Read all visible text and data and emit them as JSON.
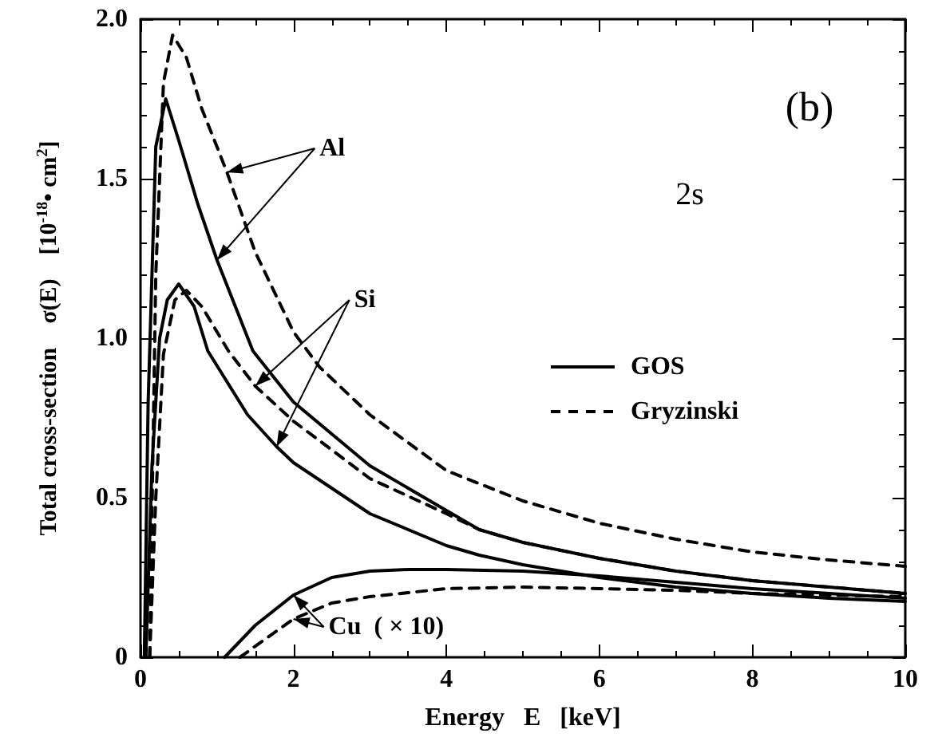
{
  "chart_data": {
    "type": "line",
    "xlabel": "Energy   E   [keV]",
    "ylabel": "Total cross-section    σ(E)    [10$^{-18}$• cm$^{2}$]",
    "xlim": [
      0,
      10
    ],
    "xticks": [
      0,
      2,
      4,
      6,
      8,
      10
    ],
    "ylim": [
      0,
      2
    ],
    "yticks": [
      0,
      {
        "value": 0.5,
        "label": "0.5"
      },
      {
        "value": 1,
        "label": "1.0"
      },
      {
        "value": 1.5,
        "label": "1.5"
      },
      {
        "value": 2,
        "label": "2.0"
      }
    ],
    "grid": false,
    "legend": "right",
    "marker": "none",
    "annotations": [
      "(b)",
      "2s",
      {
        "text": "Al",
        "x": 1.13,
        "y": 1.52
      },
      {
        "text": "Si",
        "x": 1.5,
        "y": 0.85
      },
      {
        "text": "Cu  ( × 10)",
        "x": 2.0,
        "y": 0.195
      }
    ],
    "series": [
      {
        "name": "GOS",
        "color": "#000000",
        "line_style": "solid",
        "x": [
          0.05,
          0.1,
          0.2,
          0.33,
          0.5,
          0.75,
          1.0,
          1.47,
          2,
          3,
          4,
          4.43,
          5,
          6,
          7,
          8,
          9,
          10
        ],
        "values": [
          0,
          0.8,
          1.6,
          1.75,
          1.62,
          1.42,
          1.245,
          0.96,
          0.8,
          0.6,
          0.46,
          0.4,
          0.36,
          0.31,
          0.27,
          0.24,
          0.22,
          0.2
        ]
      },
      {
        "name": "Gryzinski",
        "color": "#000000",
        "line_style": "dashed",
        "x": [
          0.12,
          0.2,
          0.3,
          0.42,
          0.6,
          0.8,
          1.0,
          1.13,
          1.5,
          2,
          2.34,
          3,
          4,
          5,
          6,
          7,
          8,
          9,
          10
        ],
        "values": [
          0,
          1.2,
          1.8,
          1.95,
          1.88,
          1.72,
          1.6,
          1.52,
          1.27,
          1.02,
          0.91,
          0.76,
          0.585,
          0.49,
          0.42,
          0.37,
          0.33,
          0.305,
          0.285
        ]
      },
      {
        "color": "#000000",
        "line_style": "solid",
        "x": [
          0.07,
          0.15,
          0.25,
          0.35,
          0.5,
          0.7,
          0.88,
          1.4,
          1.78,
          2,
          3,
          4,
          4.43,
          5,
          6,
          7,
          8,
          9,
          10
        ],
        "values": [
          0,
          0.6,
          1.0,
          1.12,
          1.17,
          1.1,
          0.96,
          0.76,
          0.66,
          0.61,
          0.45,
          0.35,
          0.32,
          0.29,
          0.25,
          0.22,
          0.2,
          0.185,
          0.175
        ]
      },
      {
        "color": "#000000",
        "line_style": "dashed",
        "x": [
          0.12,
          0.2,
          0.3,
          0.45,
          0.6,
          0.8,
          1.15,
          1.5,
          2,
          3,
          4,
          4.43,
          5,
          6,
          7,
          8,
          9,
          10
        ],
        "values": [
          0,
          0.5,
          0.95,
          1.12,
          1.15,
          1.1,
          0.96,
          0.85,
          0.74,
          0.56,
          0.45,
          0.4,
          0.36,
          0.31,
          0.27,
          0.24,
          0.22,
          0.2
        ]
      },
      {
        "color": "#000000",
        "line_style": "solid",
        "x": [
          1.1,
          1.5,
          2,
          2.5,
          3,
          3.5,
          4,
          5,
          6,
          7,
          8,
          9,
          10
        ],
        "values": [
          0,
          0.1,
          0.195,
          0.25,
          0.27,
          0.275,
          0.275,
          0.27,
          0.255,
          0.235,
          0.215,
          0.2,
          0.185
        ]
      },
      {
        "color": "#000000",
        "line_style": "dashed",
        "x": [
          1.3,
          2,
          2.5,
          3,
          4,
          5,
          6,
          7,
          8,
          9,
          10
        ],
        "values": [
          0,
          0.12,
          0.17,
          0.19,
          0.215,
          0.22,
          0.215,
          0.21,
          0.2,
          0.195,
          0.19
        ]
      }
    ]
  }
}
